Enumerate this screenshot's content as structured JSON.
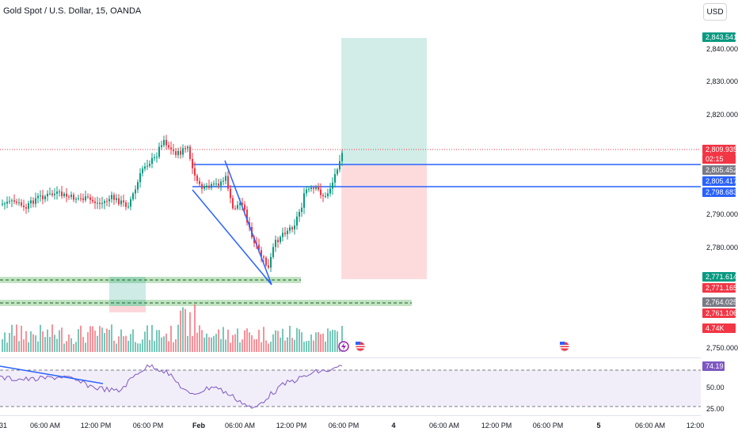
{
  "header": {
    "symbol_title": "Gold Spot / U.S. Dollar, 15, OANDA",
    "currency_button": "USD"
  },
  "price_axis": {
    "ticks": [
      "2,840.000",
      "2,830.000",
      "2,820.000",
      "2,790.000",
      "2,780.000",
      "2,750.000"
    ],
    "tags": {
      "target": "2,843.541",
      "last_price": "2,809.935",
      "countdown": "02:15",
      "upper_line": "2,805.452",
      "lower_line_a": "2,805.417",
      "lower_line_b": "2,798.683",
      "zone_high": "2,771.614",
      "zone_mid": "2,771.165",
      "zone_low_a": "2,764.025",
      "zone_low_b": "2,761.106",
      "volume": "4.74K"
    },
    "colors": {
      "target": "#089981",
      "last_price": "#f23645",
      "gray": "#787b86",
      "blue": "#2962ff"
    }
  },
  "rsi_axis": {
    "value": "74.19",
    "ticks": [
      "50.00",
      "25.00"
    ],
    "value_color": "#7e57c2"
  },
  "time_axis": {
    "labels": [
      "31",
      "06:00 AM",
      "12:00 PM",
      "06:00 PM",
      "Feb",
      "06:00 AM",
      "12:00 PM",
      "06:00 PM",
      "4",
      "06:00 AM",
      "12:00 PM",
      "06:00 PM",
      "5",
      "06:00 AM",
      "12:00"
    ]
  },
  "event_icons": [
    "lightning-icon",
    "us-flag-icon",
    "us-flag-icon"
  ]
}
